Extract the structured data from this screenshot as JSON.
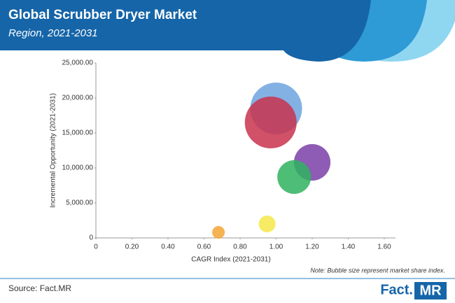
{
  "chart_data": {
    "type": "bubble",
    "title": "Global Scrubber Dryer Market",
    "subtitle": "Region, 2021-2031",
    "x_label": "CAGR Index (2021-2031)",
    "y_label": "Incremental Opportunity (2021-2031)",
    "note": "Note: Bubble size represent market share index.",
    "x": [
      1.0,
      0.97,
      1.2,
      1.1,
      0.95,
      0.68
    ],
    "values": [
      18500,
      16500,
      10800,
      8700,
      2000,
      800
    ],
    "sizes": [
      13.7,
      13.7,
      6.8,
      5.8,
      1.44,
      0.81
    ],
    "colors": [
      "#6fa3de",
      "#c8324e",
      "#7a3fa8",
      "#2fb35f",
      "#f6e84a",
      "#f5a636"
    ],
    "xlim": [
      0,
      1.6
    ],
    "xticks": [
      0,
      {
        "value": 0.2,
        "label": "0.20"
      },
      {
        "value": 0.4,
        "label": "0.40"
      },
      {
        "value": 0.6,
        "label": "0.60"
      },
      {
        "value": 0.8,
        "label": "0.80"
      },
      {
        "value": 1.0,
        "label": "1.00"
      },
      {
        "value": 1.2,
        "label": "1.20"
      },
      {
        "value": 1.4,
        "label": "1.40"
      },
      {
        "value": 1.6,
        "label": "1.60"
      }
    ],
    "ylim": [
      0,
      25000
    ],
    "yticks": [
      0,
      {
        "value": 5000,
        "label": "5,000.00"
      },
      {
        "value": 10000,
        "label": "10,000.00"
      },
      {
        "value": 15000,
        "label": "15,000.00"
      },
      {
        "value": 20000,
        "label": "20,000.00"
      },
      {
        "value": 25000,
        "label": "25,000.00"
      }
    ]
  },
  "footer": {
    "source": "Source: Fact.MR",
    "brand_left": "Fact.",
    "brand_right": "MR"
  }
}
